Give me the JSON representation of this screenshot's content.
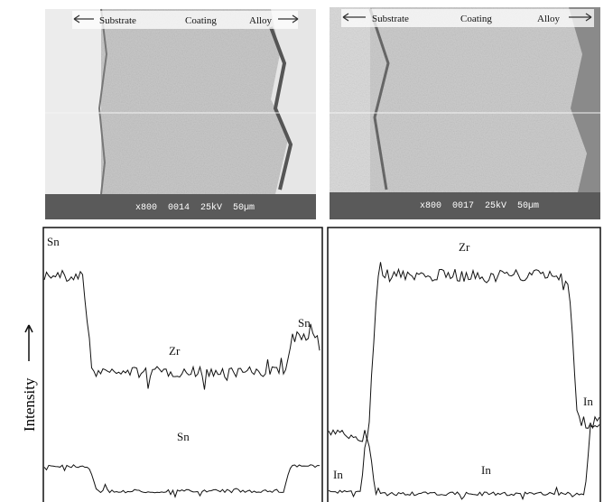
{
  "panels": [
    {
      "labels": [
        "Substrate",
        "Coating",
        "Alloy"
      ],
      "scale_bar": "x800  0014  25kV  50µm"
    },
    {
      "labels": [
        "Substrate",
        "Coating",
        "Alloy"
      ],
      "scale_bar": "x800  0017  25kV  50µm"
    }
  ],
  "y_axis_label": "Intensity",
  "line_scans": [
    {
      "labels": [
        "Sn",
        "Zr",
        "Sn",
        "Sn"
      ]
    },
    {
      "labels": [
        "Zr",
        "In",
        "In",
        "In"
      ]
    }
  ]
}
